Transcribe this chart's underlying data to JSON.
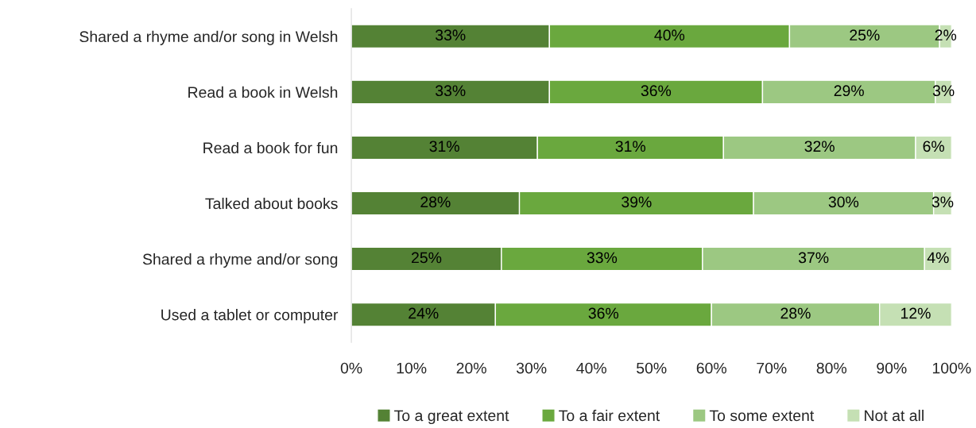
{
  "chart_data": {
    "type": "bar",
    "orientation": "horizontal",
    "stacked": true,
    "categories": [
      "Shared a rhyme and/or song in Welsh",
      "Read a book in Welsh",
      "Read a book for fun",
      "Talked about books",
      "Shared a rhyme and/or song",
      "Used a tablet or computer"
    ],
    "series": [
      {
        "name": "To a great extent",
        "color": "#548235",
        "values": [
          33,
          33,
          31,
          28,
          25,
          24
        ],
        "value_labels": [
          "33%",
          "33%",
          "31%",
          "28%",
          "25%",
          "24%"
        ]
      },
      {
        "name": "To a fair extent",
        "color": "#6aa83e",
        "values": [
          40,
          35.5,
          31,
          39,
          33.5,
          36
        ],
        "value_labels": [
          "40%",
          "36%",
          "31%",
          "39%",
          "33%",
          "36%"
        ]
      },
      {
        "name": "To some extent",
        "color": "#9cc882",
        "values": [
          25,
          28.8,
          32,
          30,
          37,
          28
        ],
        "value_labels": [
          "25%",
          "29%",
          "32%",
          "30%",
          "37%",
          "28%"
        ]
      },
      {
        "name": "Not at all",
        "color": "#c5e0b4",
        "values": [
          2,
          2.7,
          6,
          3,
          4.5,
          12
        ],
        "value_labels": [
          "2%",
          "3%",
          "6%",
          "3%",
          "4%",
          "12%"
        ]
      }
    ],
    "xlim": [
      0,
      100
    ],
    "xticks": [
      {
        "value": 0,
        "label": "0%"
      },
      {
        "value": 10,
        "label": "10%"
      },
      {
        "value": 20,
        "label": "20%"
      },
      {
        "value": 30,
        "label": "30%"
      },
      {
        "value": 40,
        "label": "40%"
      },
      {
        "value": 50,
        "label": "50%"
      },
      {
        "value": 60,
        "label": "60%"
      },
      {
        "value": 70,
        "label": "70%"
      },
      {
        "value": 80,
        "label": "80%"
      },
      {
        "value": 90,
        "label": "90%"
      },
      {
        "value": 100,
        "label": "100%"
      }
    ],
    "grid": false,
    "legend": "bottom"
  }
}
